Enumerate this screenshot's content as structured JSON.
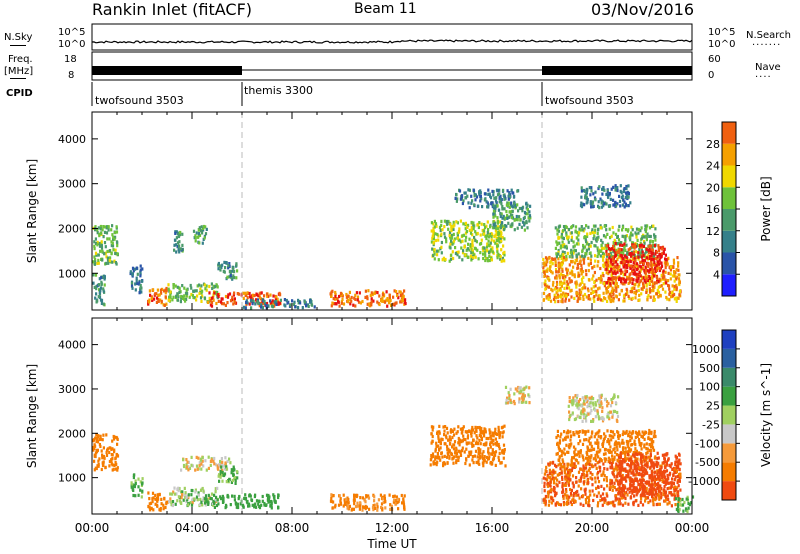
{
  "header": {
    "station": "Rankin Inlet (fitACF)",
    "beam": "Beam 11",
    "date": "03/Nov/2016"
  },
  "strip_labels": {
    "nsky": "N.Sky",
    "nsearch": "N.Search",
    "freq": "Freq.",
    "freq_unit": "[MHz]",
    "nave": "Nave",
    "cpid": "CPID",
    "nsky_hi": "10^5",
    "nsky_lo": "10^0",
    "nsearch_hi": "10^5",
    "nsearch_lo": "10^0",
    "freq_hi": "18",
    "freq_lo": "8",
    "nave_hi": "60",
    "nave_lo": "0"
  },
  "cpid_segments": [
    {
      "label": "twofsound 3503",
      "start_hour": 0
    },
    {
      "label": "themis 3300",
      "start_hour": 6
    },
    {
      "label": "twofsound 3503",
      "start_hour": 18
    }
  ],
  "colors": {
    "power_scale": [
      "#1f1fff",
      "#2a54a8",
      "#35808a",
      "#4a9a6a",
      "#6ec23a",
      "#f0d800",
      "#f5a000",
      "#f06010",
      "#e81010"
    ],
    "velocity_scale": [
      "#ff1010",
      "#f04a10",
      "#f57c00",
      "#f59a3a",
      "#c8c8c8",
      "#a0d060",
      "#3aa040",
      "#3a8a6a",
      "#2a60a0",
      "#1f40c0"
    ]
  },
  "chart_data": [
    {
      "type": "heatmap",
      "title": "",
      "quantity": "Power",
      "xlabel": "",
      "ylabel": "Slant Range [km]",
      "colorbar_label": "Power [dB]",
      "colorbar_ticks": [
        "4",
        "8",
        "12",
        "16",
        "20",
        "24",
        "28"
      ],
      "xlim": [
        0,
        24
      ],
      "ylim": [
        180,
        4600
      ],
      "x_ticks": [
        "00:00",
        "04:00",
        "08:00",
        "12:00",
        "16:00",
        "20:00",
        "00:00"
      ],
      "y_ticks": [
        "1000",
        "2000",
        "3000",
        "4000"
      ],
      "y_tick_values": [
        1000,
        2000,
        3000,
        4000
      ],
      "regions": [
        {
          "x0": 0.0,
          "x1": 1.0,
          "y0": 1200,
          "y1": 2100,
          "value": 14
        },
        {
          "x0": 0.0,
          "x1": 0.5,
          "y0": 300,
          "y1": 1000,
          "value": 10
        },
        {
          "x0": 1.5,
          "x1": 2.0,
          "y0": 600,
          "y1": 1200,
          "value": 8
        },
        {
          "x0": 2.2,
          "x1": 3.0,
          "y0": 300,
          "y1": 700,
          "value": 24
        },
        {
          "x0": 3.0,
          "x1": 5.0,
          "y0": 400,
          "y1": 800,
          "value": 14
        },
        {
          "x0": 3.2,
          "x1": 3.6,
          "y0": 1500,
          "y1": 2000,
          "value": 10
        },
        {
          "x0": 4.0,
          "x1": 4.6,
          "y0": 1700,
          "y1": 2100,
          "value": 12
        },
        {
          "x0": 4.5,
          "x1": 7.5,
          "y0": 300,
          "y1": 600,
          "value": 26
        },
        {
          "x0": 5.0,
          "x1": 5.8,
          "y0": 900,
          "y1": 1300,
          "value": 10
        },
        {
          "x0": 6.0,
          "x1": 9.0,
          "y0": 250,
          "y1": 450,
          "value": 8
        },
        {
          "x0": 9.5,
          "x1": 12.5,
          "y0": 300,
          "y1": 650,
          "value": 24
        },
        {
          "x0": 13.5,
          "x1": 16.5,
          "y0": 1300,
          "y1": 2200,
          "value": 16
        },
        {
          "x0": 14.5,
          "x1": 17.0,
          "y0": 2500,
          "y1": 2900,
          "value": 8
        },
        {
          "x0": 16.0,
          "x1": 17.5,
          "y0": 2000,
          "y1": 2600,
          "value": 12
        },
        {
          "x0": 18.0,
          "x1": 23.5,
          "y0": 400,
          "y1": 1400,
          "value": 22
        },
        {
          "x0": 18.5,
          "x1": 22.5,
          "y0": 1400,
          "y1": 2100,
          "value": 14
        },
        {
          "x0": 20.5,
          "x1": 23.0,
          "y0": 800,
          "y1": 1700,
          "value": 28
        },
        {
          "x0": 19.5,
          "x1": 21.5,
          "y0": 2500,
          "y1": 3000,
          "value": 8
        }
      ]
    },
    {
      "type": "heatmap",
      "title": "",
      "quantity": "Velocity",
      "xlabel": "Time UT",
      "ylabel": "Slant Range [km]",
      "colorbar_label": "Velocity [m s^-1]",
      "colorbar_ticks": [
        "1000",
        "500",
        "100",
        "25",
        "-25",
        "-100",
        "-500",
        "-1000"
      ],
      "xlim": [
        0,
        24
      ],
      "ylim": [
        180,
        4600
      ],
      "x_ticks": [
        "00:00",
        "04:00",
        "08:00",
        "12:00",
        "16:00",
        "20:00",
        "00:00"
      ],
      "y_ticks": [
        "1000",
        "2000",
        "3000",
        "4000"
      ],
      "y_tick_values": [
        1000,
        2000,
        3000,
        4000
      ],
      "regions": [
        {
          "x0": 0.0,
          "x1": 1.0,
          "y0": 1200,
          "y1": 2000,
          "value": -400
        },
        {
          "x0": 1.5,
          "x1": 2.0,
          "y0": 600,
          "y1": 1100,
          "value": 150
        },
        {
          "x0": 2.2,
          "x1": 3.0,
          "y0": 300,
          "y1": 700,
          "value": -200
        },
        {
          "x0": 3.0,
          "x1": 5.0,
          "y0": 400,
          "y1": 800,
          "value": 60
        },
        {
          "x0": 3.5,
          "x1": 5.5,
          "y0": 1200,
          "y1": 1500,
          "value": 0
        },
        {
          "x0": 4.5,
          "x1": 7.5,
          "y0": 350,
          "y1": 650,
          "value": 200
        },
        {
          "x0": 5.0,
          "x1": 5.8,
          "y0": 900,
          "y1": 1300,
          "value": 120
        },
        {
          "x0": 9.5,
          "x1": 12.5,
          "y0": 300,
          "y1": 650,
          "value": -150
        },
        {
          "x0": 13.5,
          "x1": 16.5,
          "y0": 1300,
          "y1": 2200,
          "value": -400
        },
        {
          "x0": 16.5,
          "x1": 17.5,
          "y0": 2700,
          "y1": 3100,
          "value": 0
        },
        {
          "x0": 18.0,
          "x1": 23.5,
          "y0": 400,
          "y1": 1400,
          "value": -500
        },
        {
          "x0": 18.5,
          "x1": 22.5,
          "y0": 1400,
          "y1": 2100,
          "value": -300
        },
        {
          "x0": 19.0,
          "x1": 21.0,
          "y0": 2300,
          "y1": 2900,
          "value": 0
        },
        {
          "x0": 21.0,
          "x1": 23.5,
          "y0": 600,
          "y1": 1600,
          "value": -900
        },
        {
          "x0": 23.3,
          "x1": 24.0,
          "y0": 250,
          "y1": 600,
          "value": 150
        }
      ]
    }
  ]
}
